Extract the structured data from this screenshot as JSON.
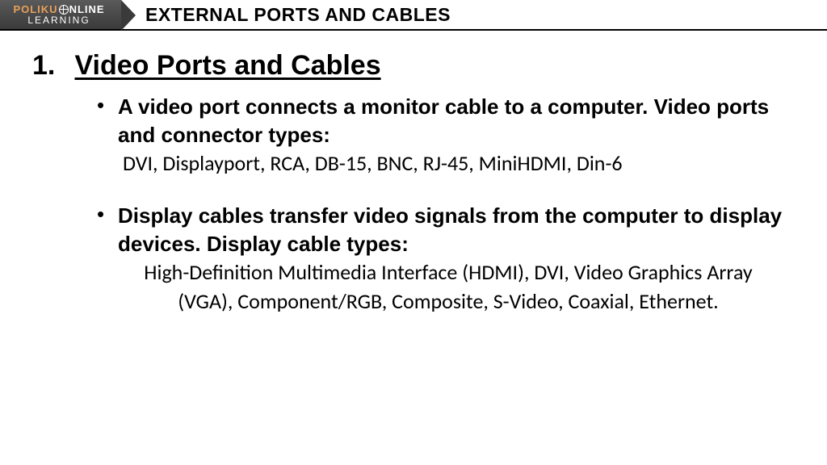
{
  "logo": {
    "brand_left": "POLIKU",
    "brand_right": "NLINE",
    "subline": "LEARNING"
  },
  "header": {
    "title": "EXTERNAL PORTS AND CABLES"
  },
  "section": {
    "number": "1.",
    "heading": "Video Ports and Cables"
  },
  "bullets": [
    {
      "bold": "A video port connects a monitor cable to a computer. Video ports and connector types:",
      "normal": "DVI, Displayport, RCA, DB-15, BNC, RJ-45, MiniHDMI, Din-6",
      "normal_centered": false
    },
    {
      "bold": "Display cables transfer video signals from the computer to display devices. Display cable types:",
      "normal": "High-Definition Multimedia Interface (HDMI), DVI, Video Graphics Array (VGA), Component/RGB, Composite, S-Video, Coaxial, Ethernet.",
      "normal_centered": true
    }
  ],
  "colors": {
    "background": "#ffffff",
    "text": "#000000",
    "logo_bg_top": "#5a5a5a",
    "logo_bg_bottom": "#3a3a3a",
    "logo_accent": "#e8a05c",
    "rule": "#000000"
  },
  "typography": {
    "header_title_size": 23,
    "heading_size": 34,
    "body_size": 26
  }
}
